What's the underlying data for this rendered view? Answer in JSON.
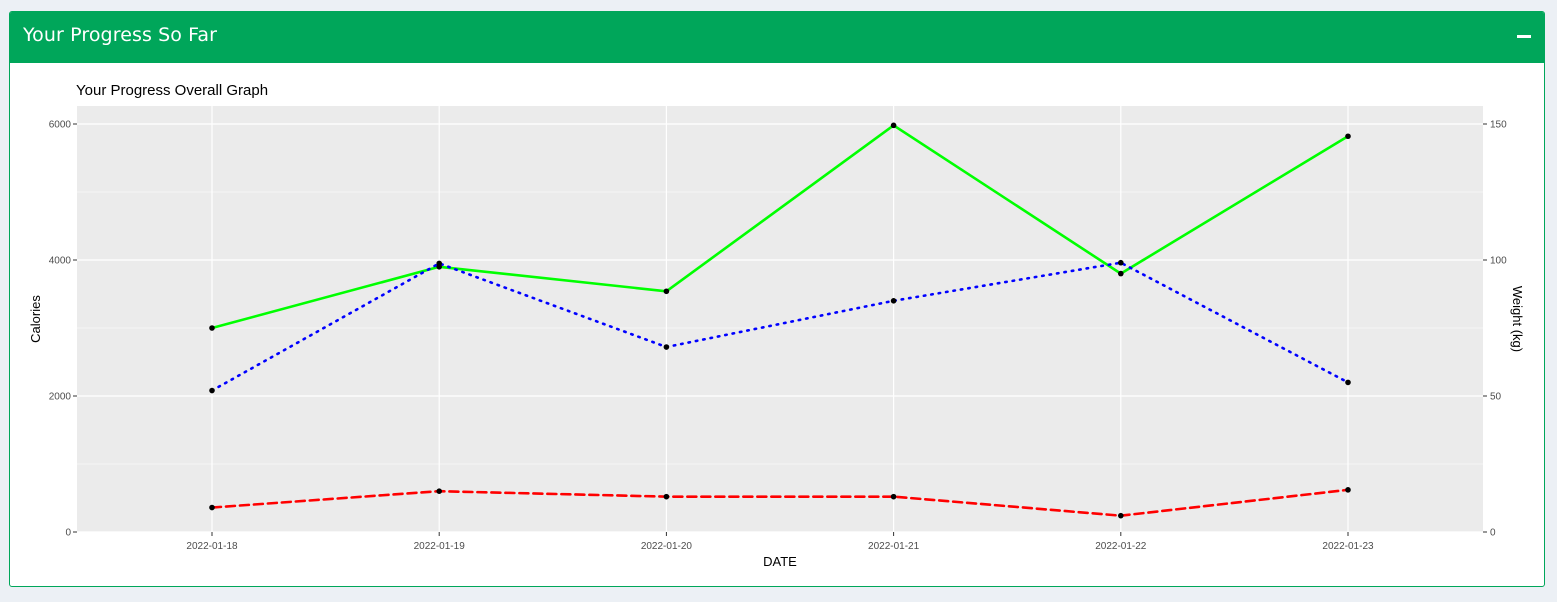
{
  "panel": {
    "title": "Your Progress So Far",
    "collapse_icon": "minus-icon",
    "header_color": "#00a65a"
  },
  "chart_data": {
    "type": "line",
    "title": "Your Progress Overall Graph",
    "xlabel": "DATE",
    "ylabel": "Calories",
    "y2label": "Weight (kg)",
    "categories": [
      "2022-01-18",
      "2022-01-19",
      "2022-01-20",
      "2022-01-21",
      "2022-01-22",
      "2022-01-23"
    ],
    "ylim": [
      0,
      6000
    ],
    "y2lim": [
      0,
      150
    ],
    "yticks": [
      0,
      2000,
      4000,
      6000
    ],
    "y2ticks": [
      0,
      50,
      100,
      150
    ],
    "grid": true,
    "background": "#ebebeb",
    "series": [
      {
        "axis": "left",
        "color": "#00ff00",
        "style": "solid",
        "values": [
          3000,
          3900,
          3540,
          5980,
          3800,
          5820
        ]
      },
      {
        "axis": "left",
        "color": "#0000ff",
        "style": "dotted",
        "values": [
          2080,
          3950,
          2720,
          3400,
          3960,
          2200
        ]
      },
      {
        "axis": "right",
        "color": "#ff0000",
        "style": "dashed",
        "values": [
          9,
          15,
          13,
          13,
          6,
          15.5
        ]
      }
    ]
  }
}
